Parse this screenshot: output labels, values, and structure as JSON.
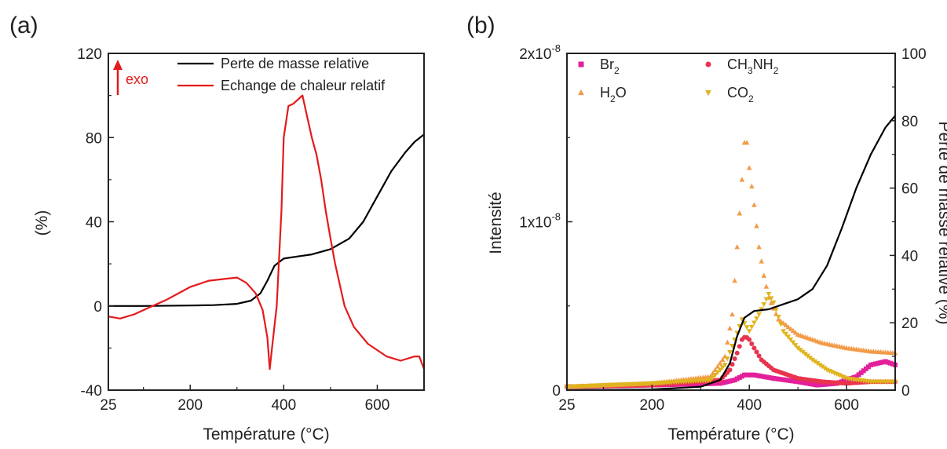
{
  "chart_data": [
    {
      "panel_label": "(a)",
      "type": "line",
      "xlabel": "Température (°C)",
      "ylabel": "(%)",
      "xlim": [
        25,
        700
      ],
      "ylim": [
        -40,
        120
      ],
      "xticks": [
        "25",
        "200",
        "400",
        "600"
      ],
      "xtick_values": [
        25,
        200,
        400,
        600
      ],
      "yticks": [
        "-40",
        "0",
        "40",
        "80",
        "120"
      ],
      "ytick_values": [
        -40,
        0,
        40,
        80,
        120
      ],
      "annotation": "exo",
      "annotation_color": "#e41a1c",
      "legend_position": "top-right",
      "series": [
        {
          "name": "Perte de masse relative",
          "color": "#000000",
          "points": [
            [
              25,
              0
            ],
            [
              100,
              0
            ],
            [
              200,
              0.2
            ],
            [
              250,
              0.4
            ],
            [
              300,
              1
            ],
            [
              330,
              2.5
            ],
            [
              350,
              6
            ],
            [
              365,
              12
            ],
            [
              380,
              19
            ],
            [
              400,
              22.5
            ],
            [
              430,
              23.5
            ],
            [
              460,
              24.5
            ],
            [
              500,
              27
            ],
            [
              540,
              32
            ],
            [
              570,
              40
            ],
            [
              600,
              52
            ],
            [
              630,
              64
            ],
            [
              660,
              73
            ],
            [
              680,
              78
            ],
            [
              700,
              81.5
            ]
          ]
        },
        {
          "name": "Echange de chaleur relatif",
          "color": "#e41a1c",
          "points": [
            [
              25,
              -5
            ],
            [
              50,
              -6
            ],
            [
              80,
              -4
            ],
            [
              110,
              -1
            ],
            [
              150,
              3
            ],
            [
              200,
              9
            ],
            [
              240,
              12
            ],
            [
              280,
              13
            ],
            [
              300,
              13.5
            ],
            [
              320,
              11
            ],
            [
              340,
              6
            ],
            [
              355,
              -2
            ],
            [
              365,
              -15
            ],
            [
              370,
              -30
            ],
            [
              375,
              -20
            ],
            [
              385,
              0
            ],
            [
              395,
              45
            ],
            [
              400,
              80
            ],
            [
              410,
              95
            ],
            [
              420,
              96
            ],
            [
              430,
              98
            ],
            [
              440,
              100
            ],
            [
              450,
              90
            ],
            [
              460,
              80
            ],
            [
              470,
              72
            ],
            [
              480,
              60
            ],
            [
              490,
              45
            ],
            [
              500,
              32
            ],
            [
              510,
              20
            ],
            [
              530,
              0
            ],
            [
              550,
              -10
            ],
            [
              580,
              -18
            ],
            [
              620,
              -24
            ],
            [
              650,
              -26
            ],
            [
              680,
              -24
            ],
            [
              690,
              -24
            ],
            [
              700,
              -30
            ]
          ]
        }
      ]
    },
    {
      "panel_label": "(b)",
      "type": "scatter",
      "xlabel": "Température (°C)",
      "ylabel": "Intensité",
      "ylabel_right": "Perte de masse relative (%)",
      "xlim": [
        25,
        700
      ],
      "ylim": [
        0,
        2e-08
      ],
      "ylim_right": [
        0,
        100
      ],
      "xticks": [
        "25",
        "200",
        "400",
        "600"
      ],
      "xtick_values": [
        25,
        200,
        400,
        600
      ],
      "yticks": [
        "0",
        "1x10",
        "2x10"
      ],
      "ytick_exponent": "-8",
      "ytick_values": [
        0,
        1e-08,
        2e-08
      ],
      "yticks_right": [
        "0",
        "20",
        "40",
        "60",
        "80",
        "100"
      ],
      "ytick_values_right": [
        0,
        20,
        40,
        60,
        80,
        100
      ],
      "legend_position": "top-left",
      "series": [
        {
          "name": "Br",
          "sub": "2",
          "marker": "square",
          "color": "#e3209b",
          "axis": "left",
          "points": [
            [
              25,
              2e-10
            ],
            [
              200,
              3e-10
            ],
            [
              340,
              4e-10
            ],
            [
              370,
              6e-10
            ],
            [
              390,
              9e-10
            ],
            [
              410,
              9e-10
            ],
            [
              450,
              7e-10
            ],
            [
              500,
              5e-10
            ],
            [
              540,
              3e-10
            ],
            [
              580,
              4e-10
            ],
            [
              620,
              8e-10
            ],
            [
              650,
              1.5e-09
            ],
            [
              680,
              1.7e-09
            ],
            [
              700,
              1.5e-09
            ]
          ]
        },
        {
          "name": "CH",
          "sub": "3",
          "name2": "NH",
          "sub2": "2",
          "marker": "circle",
          "color": "#e8344e",
          "axis": "left",
          "points": [
            [
              25,
              2e-10
            ],
            [
              200,
              3e-10
            ],
            [
              340,
              6e-10
            ],
            [
              360,
              1.2e-09
            ],
            [
              375,
              2.2e-09
            ],
            [
              385,
              3e-09
            ],
            [
              392,
              3.2e-09
            ],
            [
              400,
              3e-09
            ],
            [
              410,
              2.5e-09
            ],
            [
              425,
              1.8e-09
            ],
            [
              450,
              1.2e-09
            ],
            [
              500,
              7e-10
            ],
            [
              550,
              5e-10
            ],
            [
              600,
              4e-10
            ],
            [
              650,
              5e-10
            ],
            [
              700,
              5e-10
            ]
          ]
        },
        {
          "name": "H",
          "sub": "2",
          "name2": "O",
          "marker": "triangle-up",
          "color": "#f29b49",
          "axis": "left",
          "points": [
            [
              25,
              2e-10
            ],
            [
              200,
              4e-10
            ],
            [
              320,
              8e-10
            ],
            [
              350,
              2e-09
            ],
            [
              365,
              4.5e-09
            ],
            [
              375,
              8.5e-09
            ],
            [
              385,
              1.25e-08
            ],
            [
              390,
              1.47e-08
            ],
            [
              395,
              1.47e-08
            ],
            [
              400,
              1.32e-08
            ],
            [
              410,
              1.1e-08
            ],
            [
              420,
              8.5e-09
            ],
            [
              430,
              6.8e-09
            ],
            [
              440,
              5.5e-09
            ],
            [
              460,
              4.2e-09
            ],
            [
              500,
              3.3e-09
            ],
            [
              550,
              2.8e-09
            ],
            [
              600,
              2.5e-09
            ],
            [
              650,
              2.3e-09
            ],
            [
              700,
              2.2e-09
            ]
          ]
        },
        {
          "name": "CO",
          "sub": "2",
          "marker": "triangle-down",
          "color": "#e0b41e",
          "axis": "left",
          "points": [
            [
              25,
              2e-10
            ],
            [
              200,
              4e-10
            ],
            [
              320,
              6e-10
            ],
            [
              350,
              1.5e-09
            ],
            [
              370,
              3e-09
            ],
            [
              385,
              4.2e-09
            ],
            [
              400,
              3.5e-09
            ],
            [
              420,
              4.5e-09
            ],
            [
              440,
              5.7e-09
            ],
            [
              450,
              5.2e-09
            ],
            [
              470,
              3.5e-09
            ],
            [
              500,
              2.5e-09
            ],
            [
              530,
              1.8e-09
            ],
            [
              560,
              1.2e-09
            ],
            [
              600,
              7e-10
            ],
            [
              650,
              5e-10
            ],
            [
              700,
              5e-10
            ]
          ]
        },
        {
          "name": "",
          "marker": "line",
          "color": "#000000",
          "axis": "right",
          "points": [
            [
              25,
              0
            ],
            [
              200,
              0.2
            ],
            [
              300,
              1
            ],
            [
              340,
              3
            ],
            [
              360,
              8
            ],
            [
              375,
              16
            ],
            [
              390,
              21.5
            ],
            [
              410,
              23.5
            ],
            [
              440,
              24
            ],
            [
              470,
              25.5
            ],
            [
              500,
              27
            ],
            [
              530,
              30
            ],
            [
              560,
              37
            ],
            [
              590,
              48
            ],
            [
              620,
              60
            ],
            [
              650,
              70
            ],
            [
              680,
              78
            ],
            [
              700,
              81.5
            ]
          ]
        }
      ]
    }
  ]
}
